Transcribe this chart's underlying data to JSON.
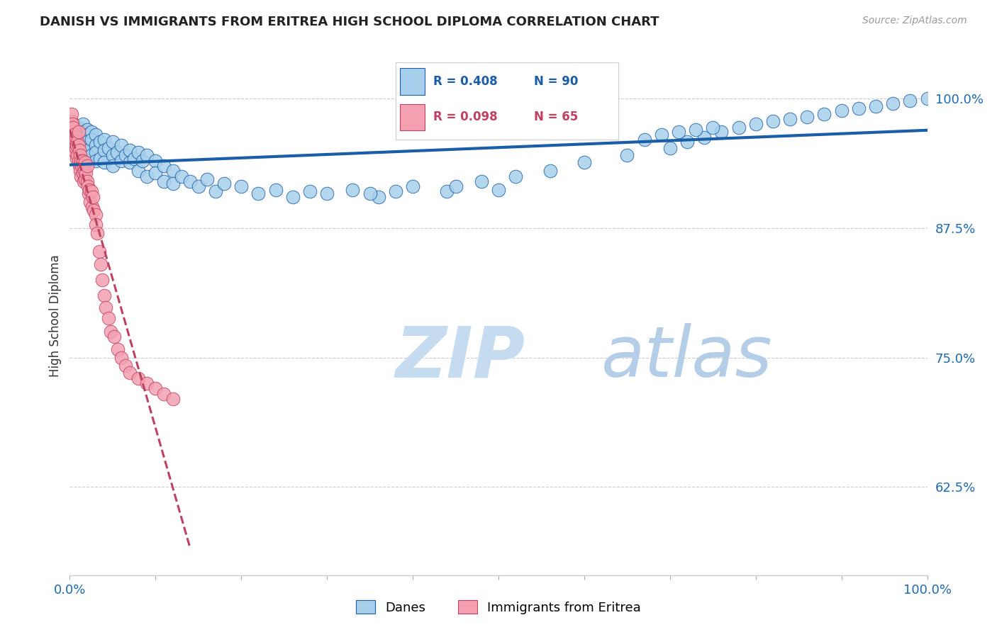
{
  "title": "DANISH VS IMMIGRANTS FROM ERITREA HIGH SCHOOL DIPLOMA CORRELATION CHART",
  "source": "Source: ZipAtlas.com",
  "ylabel": "High School Diploma",
  "yticks": [
    0.625,
    0.75,
    0.875,
    1.0
  ],
  "ytick_labels": [
    "62.5%",
    "75.0%",
    "87.5%",
    "100.0%"
  ],
  "xlim": [
    0.0,
    1.0
  ],
  "ylim": [
    0.54,
    1.04
  ],
  "legend_entries": [
    "Danes",
    "Immigrants from Eritrea"
  ],
  "legend_R_blue": "R = 0.408",
  "legend_N_blue": "N = 90",
  "legend_R_pink": "R = 0.098",
  "legend_N_pink": "N = 65",
  "color_blue": "#A8D0EC",
  "color_pink": "#F4A0B0",
  "color_trend_blue": "#1A5EA8",
  "color_trend_pink": "#C04060",
  "watermark_zip": "ZIP",
  "watermark_atlas": "atlas",
  "watermark_color_zip": "#C8DCF0",
  "watermark_color_atlas": "#B0C8E8",
  "danes_x": [
    0.005,
    0.01,
    0.01,
    0.015,
    0.015,
    0.015,
    0.02,
    0.02,
    0.02,
    0.02,
    0.025,
    0.025,
    0.025,
    0.03,
    0.03,
    0.03,
    0.03,
    0.035,
    0.035,
    0.04,
    0.04,
    0.04,
    0.045,
    0.05,
    0.05,
    0.05,
    0.055,
    0.06,
    0.06,
    0.065,
    0.07,
    0.07,
    0.075,
    0.08,
    0.08,
    0.085,
    0.09,
    0.09,
    0.1,
    0.1,
    0.11,
    0.11,
    0.12,
    0.12,
    0.13,
    0.14,
    0.15,
    0.16,
    0.17,
    0.18,
    0.2,
    0.22,
    0.24,
    0.26,
    0.28,
    0.3,
    0.33,
    0.36,
    0.4,
    0.44,
    0.48,
    0.52,
    0.56,
    0.6,
    0.65,
    0.7,
    0.72,
    0.74,
    0.76,
    0.78,
    0.8,
    0.82,
    0.84,
    0.86,
    0.88,
    0.9,
    0.92,
    0.94,
    0.96,
    0.98,
    1.0,
    0.67,
    0.69,
    0.71,
    0.73,
    0.75,
    0.45,
    0.5,
    0.38,
    0.35
  ],
  "danes_y": [
    0.96,
    0.972,
    0.965,
    0.975,
    0.968,
    0.955,
    0.97,
    0.965,
    0.958,
    0.95,
    0.968,
    0.96,
    0.945,
    0.965,
    0.955,
    0.948,
    0.94,
    0.958,
    0.942,
    0.96,
    0.95,
    0.938,
    0.952,
    0.958,
    0.945,
    0.935,
    0.948,
    0.955,
    0.94,
    0.945,
    0.95,
    0.938,
    0.942,
    0.948,
    0.93,
    0.94,
    0.945,
    0.925,
    0.94,
    0.928,
    0.935,
    0.92,
    0.93,
    0.918,
    0.925,
    0.92,
    0.915,
    0.922,
    0.91,
    0.918,
    0.915,
    0.908,
    0.912,
    0.905,
    0.91,
    0.908,
    0.912,
    0.905,
    0.915,
    0.91,
    0.92,
    0.925,
    0.93,
    0.938,
    0.945,
    0.952,
    0.958,
    0.962,
    0.968,
    0.972,
    0.975,
    0.978,
    0.98,
    0.982,
    0.985,
    0.988,
    0.99,
    0.992,
    0.995,
    0.998,
    1.0,
    0.96,
    0.965,
    0.968,
    0.97,
    0.972,
    0.915,
    0.912,
    0.91,
    0.908
  ],
  "eritrea_x": [
    0.002,
    0.002,
    0.003,
    0.003,
    0.004,
    0.004,
    0.005,
    0.005,
    0.005,
    0.006,
    0.006,
    0.007,
    0.007,
    0.008,
    0.008,
    0.009,
    0.009,
    0.01,
    0.01,
    0.01,
    0.011,
    0.011,
    0.012,
    0.012,
    0.013,
    0.013,
    0.014,
    0.015,
    0.015,
    0.016,
    0.016,
    0.017,
    0.018,
    0.018,
    0.019,
    0.02,
    0.02,
    0.021,
    0.022,
    0.023,
    0.024,
    0.025,
    0.026,
    0.027,
    0.028,
    0.03,
    0.03,
    0.032,
    0.034,
    0.036,
    0.038,
    0.04,
    0.042,
    0.045,
    0.048,
    0.052,
    0.056,
    0.06,
    0.065,
    0.07,
    0.08,
    0.09,
    0.1,
    0.11,
    0.12
  ],
  "eritrea_y": [
    0.978,
    0.985,
    0.975,
    0.968,
    0.972,
    0.96,
    0.965,
    0.958,
    0.95,
    0.96,
    0.948,
    0.962,
    0.952,
    0.955,
    0.942,
    0.958,
    0.945,
    0.968,
    0.955,
    0.94,
    0.95,
    0.935,
    0.945,
    0.93,
    0.94,
    0.925,
    0.935,
    0.94,
    0.928,
    0.935,
    0.92,
    0.93,
    0.938,
    0.922,
    0.928,
    0.935,
    0.92,
    0.915,
    0.908,
    0.912,
    0.9,
    0.91,
    0.895,
    0.905,
    0.892,
    0.888,
    0.878,
    0.87,
    0.852,
    0.84,
    0.825,
    0.81,
    0.798,
    0.788,
    0.775,
    0.77,
    0.758,
    0.75,
    0.742,
    0.735,
    0.73,
    0.725,
    0.72,
    0.715,
    0.71
  ]
}
